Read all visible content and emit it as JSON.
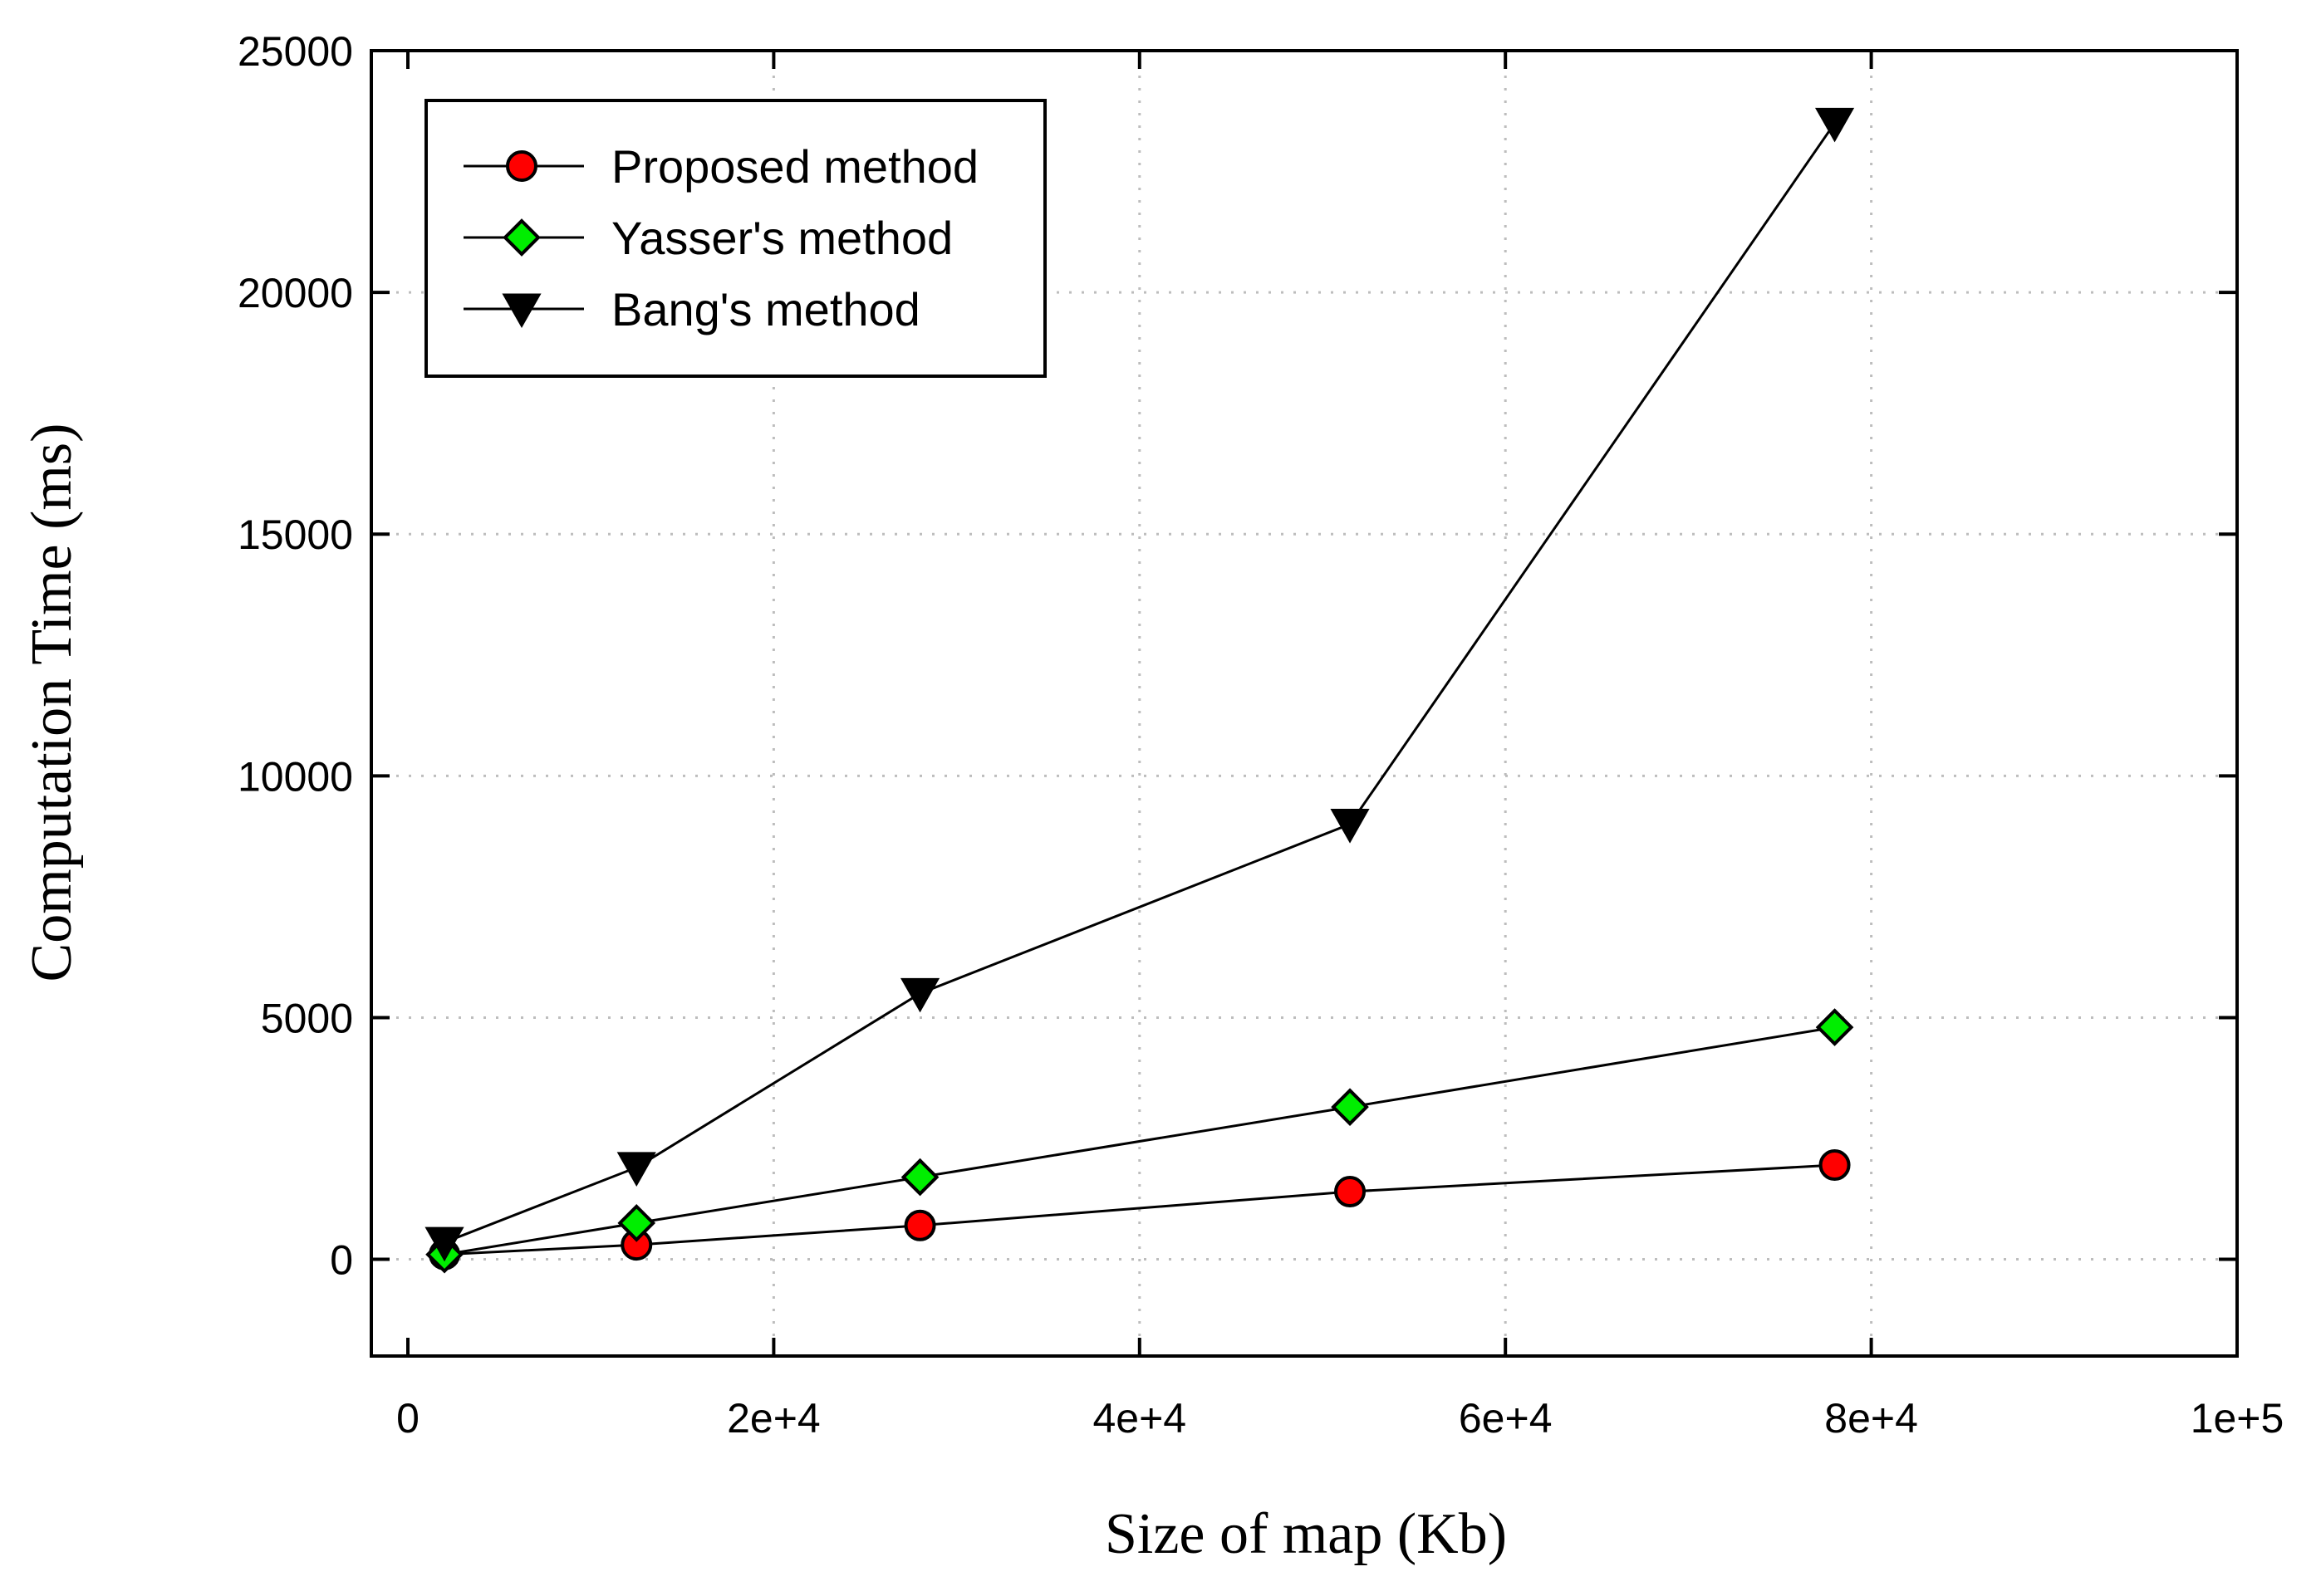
{
  "chart_data": {
    "type": "line",
    "title": "",
    "xlabel": "Size of map (Kb)",
    "ylabel": "Computation Time (ms)",
    "xlim": [
      -4000,
      100000
    ],
    "ylim": [
      -2000,
      25000
    ],
    "x_ticks": [
      0,
      20000,
      40000,
      60000,
      80000,
      100000
    ],
    "x_tick_labels": [
      "0",
      "2e+4",
      "4e+4",
      "6e+4",
      "8e+4",
      "1e+5"
    ],
    "y_ticks": [
      0,
      5000,
      10000,
      15000,
      20000,
      25000
    ],
    "y_tick_labels": [
      "0",
      "5000",
      "10000",
      "15000",
      "20000",
      "25000"
    ],
    "grid": true,
    "legend_position": "top-left",
    "series": [
      {
        "name": "Proposed method",
        "marker": "circle",
        "color": "#ff0000",
        "x": [
          2000,
          12500,
          28000,
          51500,
          78000
        ],
        "y": [
          100,
          300,
          700,
          1400,
          1950
        ]
      },
      {
        "name": "Yasser's method",
        "marker": "diamond",
        "color": "#00ee00",
        "x": [
          2000,
          12500,
          28000,
          51500,
          78000
        ],
        "y": [
          100,
          750,
          1700,
          3150,
          4800
        ]
      },
      {
        "name": "Bang's method",
        "marker": "triangle-down",
        "color": "#000000",
        "x": [
          2000,
          12500,
          28000,
          51500,
          78000
        ],
        "y": [
          350,
          1900,
          5500,
          9000,
          23500
        ]
      }
    ]
  }
}
